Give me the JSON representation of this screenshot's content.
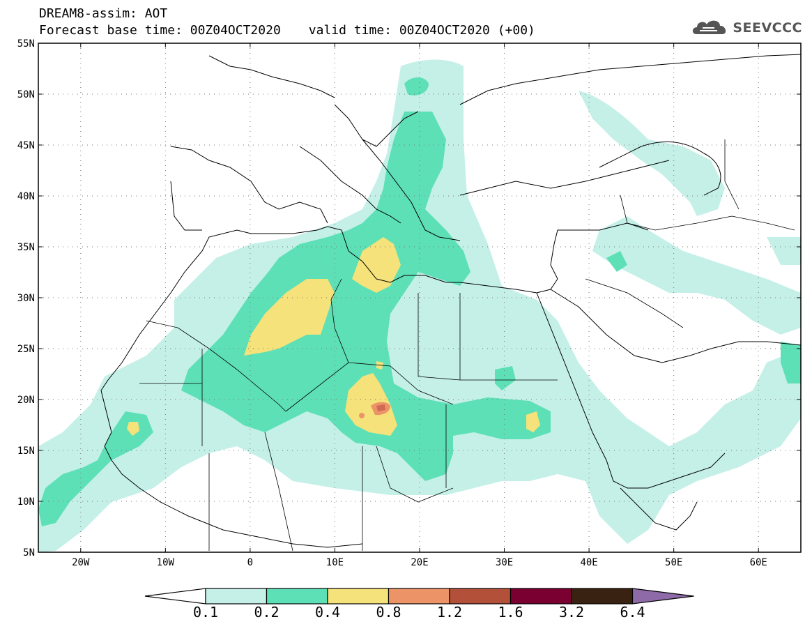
{
  "header": {
    "line1": "DREAM8-assim: AOT",
    "forecast_base": "Forecast base time: 00Z04OCT2020",
    "valid": "valid time: 00Z04OCT2020 (+00)",
    "logo_text": "SEEVCCC",
    "logo_icon": "cloud-icon"
  },
  "map": {
    "lon_range": [
      -25,
      65
    ],
    "lat_range": [
      5,
      55
    ],
    "lon_ticks": [
      "20W",
      "10W",
      "0",
      "10E",
      "20E",
      "30E",
      "40E",
      "50E",
      "60E"
    ],
    "lat_ticks": [
      "5N",
      "10N",
      "15N",
      "20N",
      "25N",
      "30N",
      "35N",
      "40N",
      "45N",
      "50N",
      "55N"
    ],
    "grid": "dotted"
  },
  "colorbar": {
    "labels": [
      "0.1",
      "0.2",
      "0.4",
      "0.8",
      "1.2",
      "1.6",
      "3.2",
      "6.4"
    ],
    "colors": [
      "#ffffff",
      "#c4f0e8",
      "#5ee0b6",
      "#f5e27a",
      "#ec9468",
      "#b3503a",
      "#7a0031",
      "#3a2212",
      "#8e6aa8"
    ]
  }
}
